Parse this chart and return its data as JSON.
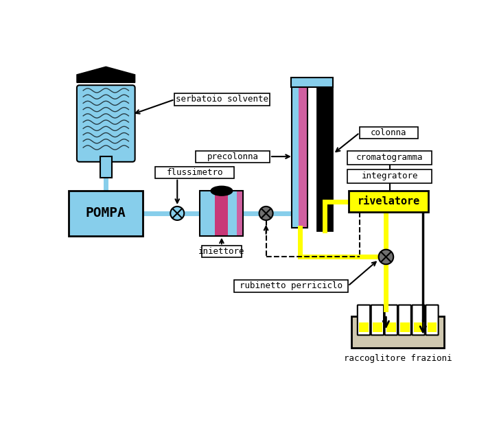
{
  "bg_color": "#ffffff",
  "labels": {
    "serbatoio_solvente": "serbatoio solvente",
    "flussimetro": "flussimetro",
    "pompa": "POMPA",
    "iniettore": "iniettore",
    "precolonna": "precolonna",
    "colonna": "colonna",
    "cromatogramma": "cromatogramma",
    "integratore": "integratore",
    "rivelatore": "rivelatore",
    "rubinetto": "rubinetto perriciclo",
    "raccoglitore": "raccoglitore frazioni"
  },
  "colors": {
    "light_blue": "#87CEEB",
    "yellow_line": "#FFFF00",
    "black": "#000000",
    "white": "#ffffff",
    "gray": "#707070",
    "dark_gray": "#404040",
    "pink": "#d060a0",
    "rivelatore_bg": "#FFFF00"
  }
}
